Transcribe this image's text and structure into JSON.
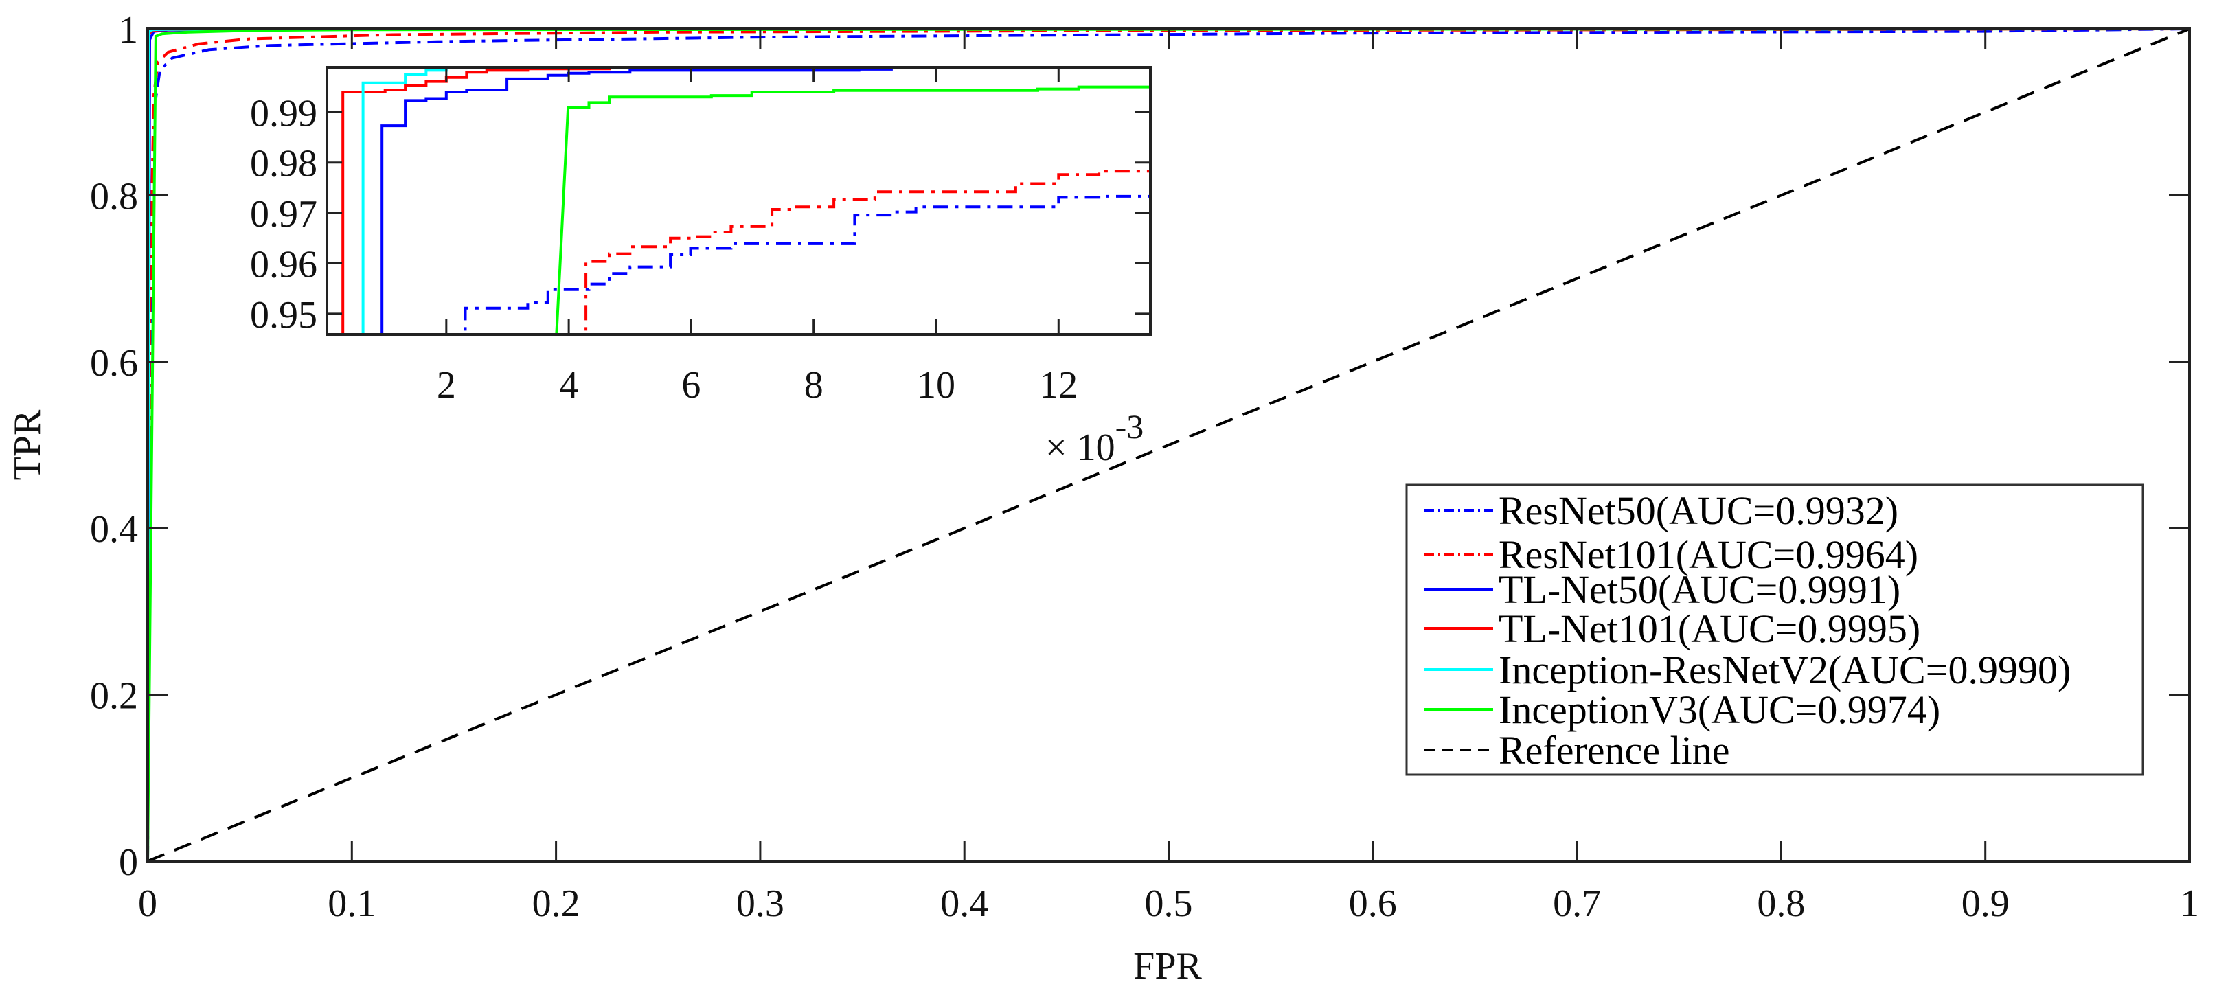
{
  "chart_data": [
    {
      "type": "line",
      "role": "main",
      "xlabel": "FPR",
      "ylabel": "TPR",
      "xlim": [
        0,
        1
      ],
      "ylim": [
        0,
        1
      ],
      "xticks": [
        "0",
        "0.1",
        "0.2",
        "0.3",
        "0.4",
        "0.5",
        "0.6",
        "0.7",
        "0.8",
        "0.9",
        "1"
      ],
      "yticks": [
        "0",
        "0.2",
        "0.4",
        "0.6",
        "0.8",
        "1"
      ],
      "grid": false,
      "legend_position": "center-right",
      "series": [
        {
          "name": "ResNet50(AUC=0.9932)",
          "color": "#0000ff",
          "style": "dash-dot",
          "x": [
            0,
            0.001,
            0.003,
            0.006,
            0.012,
            0.03,
            0.06,
            0.15,
            0.3,
            0.6,
            0.9,
            1
          ],
          "y": [
            0,
            0.6,
            0.9,
            0.95,
            0.965,
            0.975,
            0.98,
            0.985,
            0.99,
            0.995,
            0.997,
            1
          ]
        },
        {
          "name": "ResNet101(AUC=0.9964)",
          "color": "#ff0000",
          "style": "dash-dot",
          "x": [
            0,
            0.001,
            0.003,
            0.005,
            0.01,
            0.025,
            0.05,
            0.12,
            0.25,
            0.5,
            1
          ],
          "y": [
            0,
            0.65,
            0.92,
            0.96,
            0.972,
            0.982,
            0.988,
            0.993,
            0.996,
            0.998,
            1
          ]
        },
        {
          "name": "TL-Net50(AUC=0.9991)",
          "color": "#0000ff",
          "style": "solid",
          "x": [
            0,
            0.001,
            0.003,
            0.01,
            0.05,
            1
          ],
          "y": [
            0,
            0.987,
            0.997,
            0.9985,
            0.9995,
            1
          ]
        },
        {
          "name": "TL-Net101(AUC=0.9995)",
          "color": "#ff0000",
          "style": "solid",
          "x": [
            0,
            0.0003,
            0.002,
            0.005,
            0.03,
            1
          ],
          "y": [
            0,
            0.994,
            0.997,
            0.9988,
            0.9996,
            1
          ]
        },
        {
          "name": "Inception-ResNetV2(AUC=0.9990)",
          "color": "#00ffff",
          "style": "solid",
          "x": [
            0,
            0.0006,
            0.002,
            0.004,
            0.03,
            1
          ],
          "y": [
            0,
            0.996,
            0.9988,
            0.9992,
            0.9997,
            1
          ]
        },
        {
          "name": "InceptionV3(AUC=0.9974)",
          "color": "#00ff00",
          "style": "solid",
          "x": [
            0,
            0.0038,
            0.004,
            0.007,
            0.012,
            0.02,
            0.05,
            0.1,
            1
          ],
          "y": [
            0,
            0.946,
            0.991,
            0.994,
            0.995,
            0.996,
            0.998,
            0.999,
            1
          ]
        },
        {
          "name": "Reference line",
          "color": "#000000",
          "style": "dashed",
          "x": [
            0,
            1
          ],
          "y": [
            0,
            1
          ]
        }
      ]
    },
    {
      "type": "line",
      "role": "inset",
      "x_multiplier": "× 10",
      "x_exponent": "-3",
      "xlim": [
        0.05,
        13.5
      ],
      "ylim": [
        0.9459,
        0.9989
      ],
      "xticks": [
        "2",
        "4",
        "6",
        "8",
        "10",
        "12"
      ],
      "yticks": [
        "0.95",
        "0.96",
        "0.97",
        "0.98",
        "0.99"
      ],
      "series": [
        {
          "name": "ResNet50",
          "color": "#0000ff",
          "style": "dash-dot",
          "step": true,
          "x": [
            2.31,
            2.31,
            3.33,
            3.66,
            4.33,
            4.66,
            5.0,
            5.66,
            5.99,
            6.65,
            8.67,
            9.33,
            9.67,
            12.0,
            12.66,
            13.5
          ],
          "y": [
            0.9459,
            0.9511,
            0.9522,
            0.9548,
            0.9559,
            0.958,
            0.9593,
            0.9617,
            0.963,
            0.9639,
            0.9696,
            0.9702,
            0.9712,
            0.9731,
            0.9733,
            0.9738
          ]
        },
        {
          "name": "ResNet101",
          "color": "#ff0000",
          "style": "dash-dot",
          "step": true,
          "x": [
            4.28,
            4.28,
            4.66,
            5.0,
            5.66,
            5.99,
            6.33,
            6.65,
            7.32,
            7.66,
            8.33,
            9.0,
            11.3,
            12.0,
            12.66,
            13.5
          ],
          "y": [
            0.9459,
            0.9604,
            0.9619,
            0.9633,
            0.965,
            0.9653,
            0.9662,
            0.9673,
            0.9707,
            0.9712,
            0.9726,
            0.9742,
            0.9758,
            0.9776,
            0.9783,
            0.9783
          ]
        },
        {
          "name": "TL-Net50",
          "color": "#0000ff",
          "style": "solid",
          "step": true,
          "x": [
            0.95,
            0.95,
            1.33,
            1.67,
            2.0,
            2.33,
            2.99,
            3.66,
            3.99,
            4.33,
            5.0,
            8.74,
            9.27,
            10.24
          ],
          "y": [
            0.9459,
            0.9873,
            0.9923,
            0.9927,
            0.994,
            0.9944,
            0.9966,
            0.9973,
            0.9977,
            0.9979,
            0.9983,
            0.9985,
            0.9988,
            0.9989
          ]
        },
        {
          "name": "TL-Net101",
          "color": "#ff0000",
          "style": "solid",
          "step": true,
          "x": [
            0.31,
            0.31,
            1.0,
            1.33,
            1.67,
            2.0,
            2.33,
            2.66,
            3.33,
            4.66
          ],
          "y": [
            0.9459,
            0.994,
            0.9944,
            0.9953,
            0.9961,
            0.9969,
            0.9979,
            0.9983,
            0.9986,
            0.9989
          ]
        },
        {
          "name": "Inception-ResNetV2",
          "color": "#00ffff",
          "style": "solid",
          "step": true,
          "x": [
            0.64,
            0.64,
            1.33,
            1.67,
            2.0,
            2.97
          ],
          "y": [
            0.9459,
            0.9958,
            0.9974,
            0.9983,
            0.9988,
            0.9989
          ]
        },
        {
          "name": "InceptionV3",
          "color": "#00ff00",
          "style": "solid",
          "step": true,
          "x": [
            3.8,
            3.99,
            4.33,
            4.66,
            6.33,
            6.99,
            8.33,
            11.66,
            12.33,
            13.5
          ],
          "y": [
            0.9459,
            0.991,
            0.9919,
            0.993,
            0.9933,
            0.994,
            0.9943,
            0.9946,
            0.995,
            0.995
          ]
        }
      ]
    }
  ]
}
